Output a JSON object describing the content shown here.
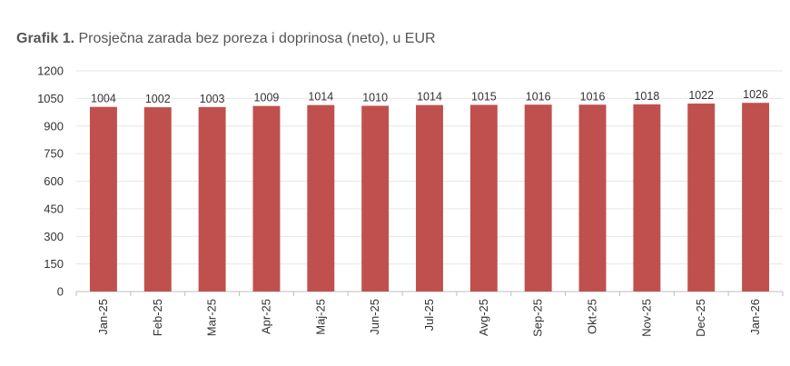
{
  "title": {
    "bold": "Grafik 1.",
    "text": " Prosječna zarada bez poreza i doprinosa (neto), u EUR"
  },
  "chart_data": {
    "type": "bar",
    "title": "Grafik 1. Prosječna zarada bez poreza i doprinosa (neto), u EUR",
    "categories": [
      "Jan-25",
      "Feb-25",
      "Mar-25",
      "Apr-25",
      "Maj-25",
      "Jun-25",
      "Jul-25",
      "Avg-25",
      "Sep-25",
      "Okt-25",
      "Nov-25",
      "Dec-25",
      "Jan-26"
    ],
    "values": [
      1004,
      1002,
      1003,
      1009,
      1014,
      1010,
      1014,
      1015,
      1016,
      1016,
      1018,
      1022,
      1026
    ],
    "data_labels": [
      "1004",
      "1002",
      "1003",
      "1009",
      "1014",
      "1010",
      "1014",
      "1015",
      "1016",
      "1016",
      "1018",
      "1022",
      "1026"
    ],
    "yticks": [
      0,
      150,
      300,
      450,
      600,
      750,
      900,
      1050,
      1200
    ],
    "ytick_labels": [
      "0",
      "150",
      "300",
      "450",
      "600",
      "750",
      "900",
      "1050",
      "1200"
    ],
    "ylim": [
      0,
      1200
    ],
    "xlabel": "",
    "ylabel": "",
    "grid": true,
    "legend": "none",
    "bar_color": "#c0504d",
    "grid_color": "#e6e6e6",
    "axis_color": "#bfbfbf"
  }
}
